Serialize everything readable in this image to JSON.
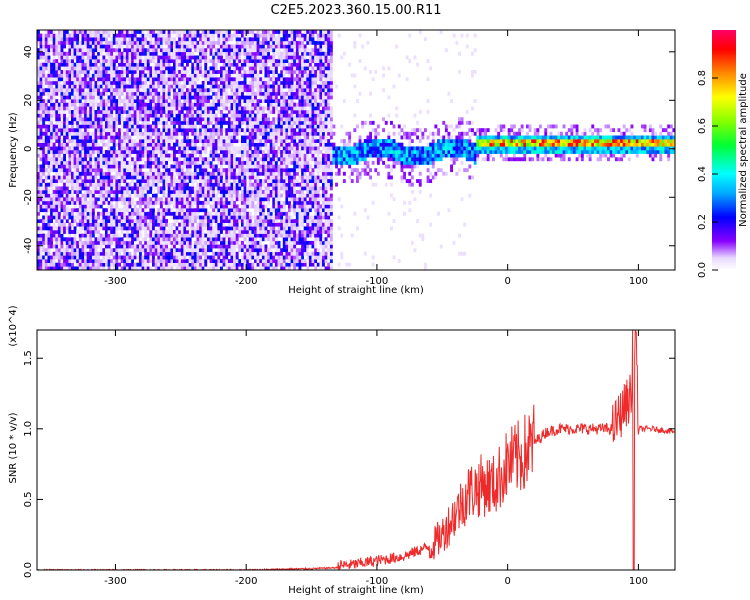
{
  "figure_title": "C2E5.2023.360.15.00.R11",
  "chart_data": [
    {
      "type": "heatmap",
      "title": "",
      "xlabel": "Height of straight line (km)",
      "ylabel": "Frequency (Hz)",
      "xlim": [
        -360,
        128
      ],
      "ylim": [
        -50,
        49
      ],
      "xticks": [
        -300,
        -200,
        -100,
        0,
        100
      ],
      "yticks": [
        -40,
        -20,
        0,
        20,
        40
      ],
      "colorbar": {
        "label": "Normalized spectral amplitude",
        "range": [
          0,
          1
        ],
        "ticks": [
          "0.0",
          "0.2",
          "0.4",
          "0.6",
          "0.8"
        ]
      },
      "description_regions": [
        {
          "x_range": [
            -360,
            -135
          ],
          "kind": "broadband noise",
          "amplitude": 0.1
        },
        {
          "x_range": [
            -135,
            -25
          ],
          "kind": "emerging line",
          "center_hz": -2,
          "amplitude": 0.35
        },
        {
          "x_range": [
            -25,
            128
          ],
          "kind": "strong line",
          "center_hz": 1.5,
          "amplitude": 0.85
        }
      ]
    },
    {
      "type": "line",
      "title": "",
      "xlabel": "Height of straight line (km)",
      "ylabel": "SNR (10 * v/v)",
      "y_multiplier": "(x10^4)",
      "xlim": [
        -360,
        128
      ],
      "ylim": [
        0,
        1.7
      ],
      "xticks": [
        -300,
        -200,
        -100,
        0,
        100
      ],
      "yticks": [
        "0.0",
        "0.5",
        "1.0",
        "1.5"
      ],
      "series_color": "#ee2a2a",
      "series": [
        {
          "x": [
            -360,
            -300,
            -200,
            -150,
            -120,
            -100,
            -80,
            -60,
            -50,
            -40,
            -30,
            -20,
            -10,
            0,
            10,
            20,
            30,
            40,
            60,
            80,
            95,
            98,
            100,
            110,
            128
          ],
          "values": [
            0.0,
            0.0,
            0.0,
            0.01,
            0.02,
            0.05,
            0.08,
            0.15,
            0.25,
            0.4,
            0.55,
            0.6,
            0.6,
            0.75,
            0.8,
            0.9,
            0.98,
            1.0,
            1.0,
            1.0,
            1.25,
            1.7,
            1.0,
            1.0,
            0.98
          ]
        }
      ]
    }
  ]
}
